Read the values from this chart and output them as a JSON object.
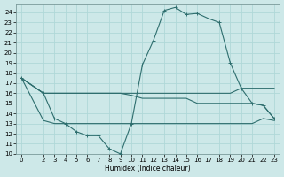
{
  "xlabel": "Humidex (Indice chaleur)",
  "ylabel": "",
  "background_color": "#cde8e8",
  "grid_color": "#b0d8d8",
  "line_color": "#2e6e6e",
  "xlim": [
    -0.5,
    23.5
  ],
  "ylim": [
    10,
    24.8
  ],
  "xtick_labels": [
    "0",
    "2",
    "3",
    "4",
    "5",
    "6",
    "7",
    "8",
    "9",
    "10",
    "11",
    "12",
    "13",
    "14",
    "15",
    "16",
    "17",
    "18",
    "19",
    "20",
    "21",
    "22",
    "23"
  ],
  "xtick_vals": [
    0,
    2,
    3,
    4,
    5,
    6,
    7,
    8,
    9,
    10,
    11,
    12,
    13,
    14,
    15,
    16,
    17,
    18,
    19,
    20,
    21,
    22,
    23
  ],
  "ytick_vals": [
    10,
    11,
    12,
    13,
    14,
    15,
    16,
    17,
    18,
    19,
    20,
    21,
    22,
    23,
    24
  ],
  "line1_x": [
    0,
    2,
    3,
    4,
    5,
    6,
    7,
    8,
    9,
    10,
    11,
    12,
    13,
    14,
    15,
    16,
    17,
    18,
    19,
    20,
    21,
    22,
    23
  ],
  "line1_y": [
    17.5,
    16.0,
    13.5,
    13.0,
    12.2,
    11.8,
    11.8,
    10.5,
    10.0,
    13.0,
    18.8,
    21.2,
    24.2,
    24.5,
    23.8,
    23.9,
    23.4,
    23.0,
    19.0,
    16.5,
    15.0,
    14.8,
    13.5
  ],
  "line2_x": [
    0,
    2,
    3,
    4,
    5,
    6,
    7,
    8,
    9,
    10,
    11,
    12,
    13,
    14,
    15,
    16,
    17,
    18,
    19,
    20,
    21,
    22,
    23
  ],
  "line2_y": [
    17.5,
    16.0,
    16.0,
    16.0,
    16.0,
    16.0,
    16.0,
    16.0,
    16.0,
    16.0,
    16.0,
    16.0,
    16.0,
    16.0,
    16.0,
    16.0,
    16.0,
    16.0,
    16.0,
    16.5,
    16.5,
    16.5,
    16.5
  ],
  "line3_x": [
    0,
    2,
    3,
    4,
    5,
    6,
    7,
    8,
    9,
    10,
    11,
    12,
    13,
    14,
    15,
    16,
    17,
    18,
    19,
    20,
    21,
    22,
    23
  ],
  "line3_y": [
    17.5,
    16.0,
    16.0,
    16.0,
    16.0,
    16.0,
    16.0,
    16.0,
    16.0,
    15.8,
    15.5,
    15.5,
    15.5,
    15.5,
    15.5,
    15.0,
    15.0,
    15.0,
    15.0,
    15.0,
    15.0,
    14.8,
    13.5
  ],
  "line4_x": [
    0,
    2,
    3,
    4,
    5,
    6,
    7,
    8,
    9,
    10,
    11,
    12,
    13,
    14,
    15,
    16,
    17,
    18,
    19,
    20,
    21,
    22,
    23
  ],
  "line4_y": [
    17.5,
    13.3,
    13.0,
    13.0,
    13.0,
    13.0,
    13.0,
    13.0,
    13.0,
    13.0,
    13.0,
    13.0,
    13.0,
    13.0,
    13.0,
    13.0,
    13.0,
    13.0,
    13.0,
    13.0,
    13.0,
    13.5,
    13.3
  ]
}
